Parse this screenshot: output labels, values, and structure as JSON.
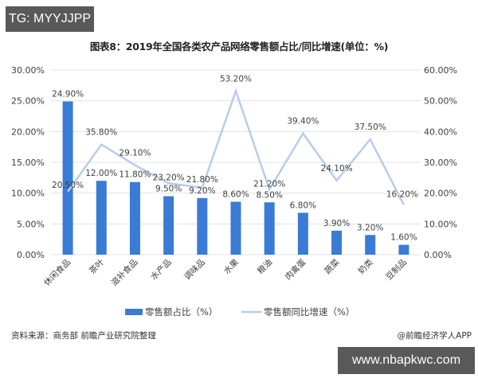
{
  "badges": {
    "top_left": "TG: MYYJJPP",
    "bottom_right": "www.nbapkwc.com"
  },
  "footer": {
    "source": "资料来源：商务部 前瞻产业研究院整理",
    "credit": "@前瞻经济学人APP"
  },
  "colors": {
    "bar": "#3a7bd5",
    "line": "#b8cdea",
    "grid": "#e3e3e3",
    "text": "#404040"
  },
  "chart_data": {
    "type": "bar+line",
    "title": "图表8：2019年全国各类农产品网络零售额占比/同比增速(单位：%)",
    "categories": [
      "休闲食品",
      "茶叶",
      "滋补食品",
      "水产品",
      "调味品",
      "水果",
      "粮油",
      "肉禽蛋",
      "蔬菜",
      "奶类",
      "豆制品"
    ],
    "series": [
      {
        "name": "零售额占比（%）",
        "type": "bar",
        "axis": "left",
        "values": [
          24.9,
          12.0,
          11.8,
          9.5,
          9.2,
          8.6,
          8.5,
          6.8,
          3.9,
          3.2,
          1.6
        ],
        "labels": [
          "24.90%",
          "12.00%",
          "11.80%",
          "9.50%",
          "9.20%",
          "8.60%",
          "8.50%",
          "6.80%",
          "3.90%",
          "3.20%",
          "1.60%"
        ]
      },
      {
        "name": "零售额同比增速（%）",
        "type": "line",
        "axis": "right",
        "values": [
          20.5,
          35.8,
          29.1,
          23.2,
          21.8,
          53.2,
          21.2,
          39.4,
          24.1,
          37.5,
          16.2
        ],
        "labels": [
          "20.50%",
          "35.80%",
          "29.10%",
          "23.20%",
          "21.80%",
          "53.20%",
          "21.20%",
          "39.40%",
          "24.10%",
          "37.50%",
          "16.20%"
        ]
      }
    ],
    "left_axis": {
      "ticks": [
        "0.00%",
        "5.00%",
        "10.00%",
        "15.00%",
        "20.00%",
        "25.00%",
        "30.00%"
      ],
      "ylim": [
        0,
        30
      ]
    },
    "right_axis": {
      "ticks": [
        "0.00%",
        "10.00%",
        "20.00%",
        "30.00%",
        "40.00%",
        "50.00%",
        "60.00%"
      ],
      "ylim": [
        0,
        60
      ]
    },
    "legend": {
      "position": "bottom",
      "entries": [
        "零售额占比（%）",
        "零售额同比增速（%）"
      ]
    },
    "grid": true
  }
}
